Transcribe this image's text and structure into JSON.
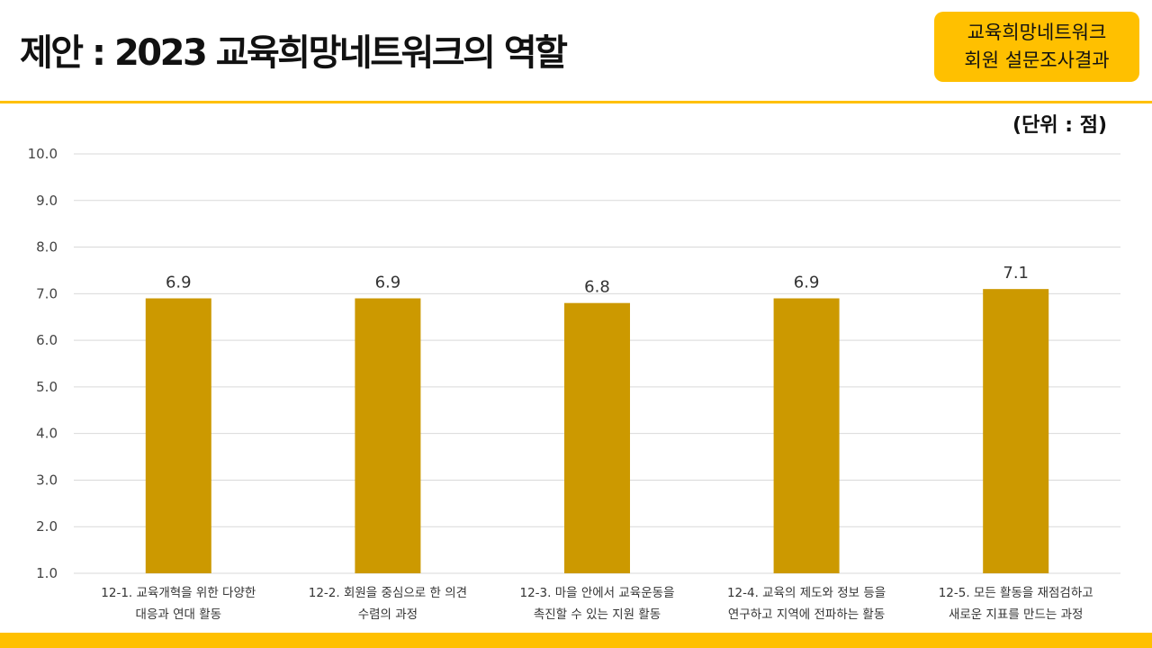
{
  "header": {
    "title": "제안 : 2023 교육희망네트워크의 역할",
    "badge_line1": "교육희망네트워크",
    "badge_line2": "회원 설문조사결과",
    "unit": "(단위 :  점)"
  },
  "colors": {
    "accent": "#ffc000",
    "bar": "#cc9900",
    "grid": "#d9d9d9"
  },
  "chart_data": {
    "type": "bar",
    "title": "",
    "xlabel": "",
    "ylabel": "",
    "ylim": [
      1.0,
      10.0
    ],
    "yticks": [
      "1.0",
      "2.0",
      "3.0",
      "4.0",
      "5.0",
      "6.0",
      "7.0",
      "8.0",
      "9.0",
      "10.0"
    ],
    "grid": true,
    "legend": "none",
    "categories": [
      [
        "12-1. 교육개혁을 위한 다양한",
        "대응과 연대 활동"
      ],
      [
        "12-2. 회원을 중심으로 한 의견",
        "수렴의 과정"
      ],
      [
        "12-3. 마을 안에서 교육운동을",
        "촉진할 수 있는 지원 활동"
      ],
      [
        "12-4. 교육의 제도와 정보 등을",
        "연구하고 지역에 전파하는 활동"
      ],
      [
        "12-5. 모든 활동을 재점검하고",
        "새로운 지표를 만드는 과정"
      ]
    ],
    "values": [
      6.9,
      6.9,
      6.8,
      6.9,
      7.1
    ],
    "value_labels": [
      "6.9",
      "6.9",
      "6.8",
      "6.9",
      "7.1"
    ]
  }
}
